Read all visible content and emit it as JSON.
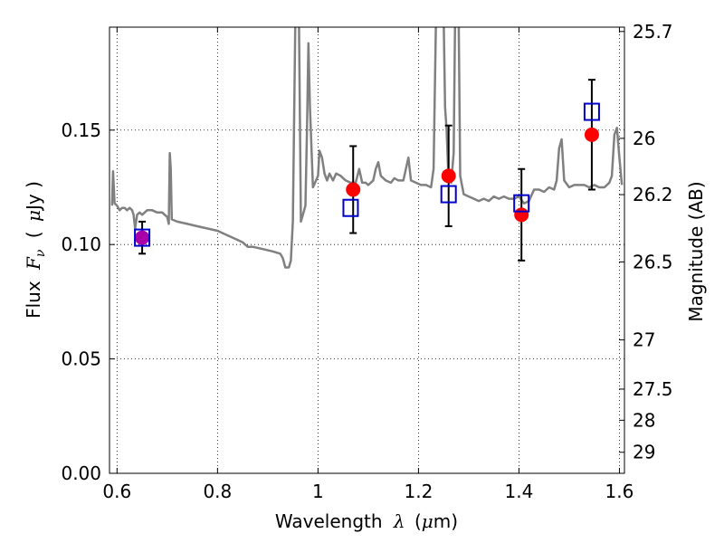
{
  "chart_data": {
    "type": "scatter",
    "xlabel_main": "Wavelength",
    "xlabel_symbol": "λ",
    "xlabel_unit_open": "(",
    "xlabel_unit_mu": "μ",
    "xlabel_unit_rest": "m)",
    "ylabel_main": "Flux",
    "ylabel_symbol": "F",
    "ylabel_sub": "ν",
    "ylabel_unit_open": "(",
    "ylabel_unit_mu": "μ",
    "ylabel_unit_rest": "Jy )",
    "y2label": "Magnitude (AB)",
    "xlim": [
      0.585,
      1.61
    ],
    "ylim": [
      0.0,
      0.195
    ],
    "grid": true,
    "x_ticks": [
      0.6,
      0.8,
      1.0,
      1.2,
      1.4,
      1.6
    ],
    "x_tick_labels": [
      "0.6",
      "0.8",
      "1",
      "1.2",
      "1.4",
      "1.6"
    ],
    "y_ticks": [
      0.0,
      0.05,
      0.1,
      0.15
    ],
    "y_tick_labels": [
      "0.00",
      "0.05",
      "0.10",
      "0.15"
    ],
    "y2_ticks": [
      {
        "label": "25.7",
        "flux": 0.1931
      },
      {
        "label": "26",
        "flux": 0.1464
      },
      {
        "label": "26.2",
        "flux": 0.1218
      },
      {
        "label": "26.5",
        "flux": 0.0924
      },
      {
        "label": "27",
        "flux": 0.0583
      },
      {
        "label": "27.5",
        "flux": 0.0368
      },
      {
        "label": "28",
        "flux": 0.0232
      },
      {
        "label": "29",
        "flux": 0.0092
      }
    ],
    "model_spectrum": {
      "color": "#808080",
      "points": [
        [
          0.59,
          0.117
        ],
        [
          0.592,
          0.132
        ],
        [
          0.595,
          0.118
        ],
        [
          0.6,
          0.117
        ],
        [
          0.605,
          0.115
        ],
        [
          0.61,
          0.116
        ],
        [
          0.615,
          0.116
        ],
        [
          0.62,
          0.115
        ],
        [
          0.625,
          0.116
        ],
        [
          0.63,
          0.115
        ],
        [
          0.633,
          0.113
        ],
        [
          0.636,
          0.107
        ],
        [
          0.64,
          0.113
        ],
        [
          0.645,
          0.114
        ],
        [
          0.65,
          0.113
        ],
        [
          0.66,
          0.115
        ],
        [
          0.67,
          0.115
        ],
        [
          0.68,
          0.114
        ],
        [
          0.69,
          0.114
        ],
        [
          0.7,
          0.112
        ],
        [
          0.703,
          0.109
        ],
        [
          0.705,
          0.14
        ],
        [
          0.707,
          0.133
        ],
        [
          0.709,
          0.111
        ],
        [
          0.72,
          0.11
        ],
        [
          0.74,
          0.109
        ],
        [
          0.76,
          0.108
        ],
        [
          0.8,
          0.106
        ],
        [
          0.82,
          0.104
        ],
        [
          0.84,
          0.102
        ],
        [
          0.85,
          0.101
        ],
        [
          0.86,
          0.099
        ],
        [
          0.87,
          0.099
        ],
        [
          0.89,
          0.098
        ],
        [
          0.91,
          0.097
        ],
        [
          0.925,
          0.096
        ],
        [
          0.93,
          0.094
        ],
        [
          0.935,
          0.09
        ],
        [
          0.942,
          0.09
        ],
        [
          0.946,
          0.093
        ],
        [
          0.95,
          0.11
        ],
        [
          0.955,
          0.2
        ],
        [
          0.962,
          0.2
        ],
        [
          0.966,
          0.11
        ],
        [
          0.97,
          0.113
        ],
        [
          0.975,
          0.117
        ],
        [
          0.978,
          0.15
        ],
        [
          0.981,
          0.188
        ],
        [
          0.984,
          0.16
        ],
        [
          0.99,
          0.125
        ],
        [
          0.996,
          0.128
        ],
        [
          1.0,
          0.13
        ],
        [
          1.003,
          0.141
        ],
        [
          1.008,
          0.138
        ],
        [
          1.013,
          0.131
        ],
        [
          1.018,
          0.128
        ],
        [
          1.023,
          0.131
        ],
        [
          1.03,
          0.128
        ],
        [
          1.036,
          0.131
        ],
        [
          1.045,
          0.13
        ],
        [
          1.055,
          0.128
        ],
        [
          1.065,
          0.127
        ],
        [
          1.075,
          0.127
        ],
        [
          1.082,
          0.133
        ],
        [
          1.088,
          0.127
        ],
        [
          1.095,
          0.127
        ],
        [
          1.1,
          0.126
        ],
        [
          1.11,
          0.128
        ],
        [
          1.115,
          0.133
        ],
        [
          1.12,
          0.136
        ],
        [
          1.125,
          0.13
        ],
        [
          1.135,
          0.128
        ],
        [
          1.145,
          0.127
        ],
        [
          1.152,
          0.129
        ],
        [
          1.16,
          0.128
        ],
        [
          1.17,
          0.128
        ],
        [
          1.175,
          0.133
        ],
        [
          1.18,
          0.138
        ],
        [
          1.185,
          0.128
        ],
        [
          1.195,
          0.127
        ],
        [
          1.205,
          0.126
        ],
        [
          1.215,
          0.126
        ],
        [
          1.225,
          0.125
        ],
        [
          1.23,
          0.133
        ],
        [
          1.235,
          0.2
        ],
        [
          1.25,
          0.2
        ],
        [
          1.253,
          0.16
        ],
        [
          1.256,
          0.15
        ],
        [
          1.26,
          0.128
        ],
        [
          1.265,
          0.127
        ],
        [
          1.27,
          0.14
        ],
        [
          1.273,
          0.2
        ],
        [
          1.28,
          0.2
        ],
        [
          1.283,
          0.13
        ],
        [
          1.29,
          0.122
        ],
        [
          1.3,
          0.121
        ],
        [
          1.31,
          0.12
        ],
        [
          1.32,
          0.119
        ],
        [
          1.33,
          0.12
        ],
        [
          1.34,
          0.119
        ],
        [
          1.35,
          0.121
        ],
        [
          1.36,
          0.12
        ],
        [
          1.37,
          0.121
        ],
        [
          1.38,
          0.12
        ],
        [
          1.39,
          0.12
        ],
        [
          1.4,
          0.121
        ],
        [
          1.41,
          0.118
        ],
        [
          1.42,
          0.119
        ],
        [
          1.43,
          0.124
        ],
        [
          1.44,
          0.124
        ],
        [
          1.45,
          0.123
        ],
        [
          1.46,
          0.125
        ],
        [
          1.47,
          0.124
        ],
        [
          1.475,
          0.128
        ],
        [
          1.48,
          0.142
        ],
        [
          1.485,
          0.146
        ],
        [
          1.49,
          0.128
        ],
        [
          1.5,
          0.125
        ],
        [
          1.51,
          0.126
        ],
        [
          1.52,
          0.126
        ],
        [
          1.53,
          0.126
        ],
        [
          1.54,
          0.125
        ],
        [
          1.55,
          0.126
        ],
        [
          1.56,
          0.125
        ],
        [
          1.57,
          0.125
        ],
        [
          1.58,
          0.127
        ],
        [
          1.585,
          0.13
        ],
        [
          1.59,
          0.148
        ],
        [
          1.595,
          0.151
        ],
        [
          1.6,
          0.138
        ],
        [
          1.605,
          0.126
        ]
      ]
    },
    "observed_points": {
      "color": "#ff0000",
      "values": [
        {
          "x": 0.65,
          "y": 0.103,
          "yerr": 0.007
        },
        {
          "x": 1.07,
          "y": 0.124,
          "yerr": 0.019
        },
        {
          "x": 1.26,
          "y": 0.13,
          "yerr": 0.022
        },
        {
          "x": 1.405,
          "y": 0.113,
          "yerr": 0.02
        },
        {
          "x": 1.545,
          "y": 0.148,
          "yerr": 0.024
        }
      ]
    },
    "model_photometry": {
      "color": "#0000cc",
      "values": [
        {
          "x": 0.65,
          "y": 0.103
        },
        {
          "x": 1.065,
          "y": 0.116
        },
        {
          "x": 1.26,
          "y": 0.122
        },
        {
          "x": 1.405,
          "y": 0.118
        },
        {
          "x": 1.545,
          "y": 0.158
        }
      ]
    },
    "first_point_fill_color": "#aa00aa"
  }
}
